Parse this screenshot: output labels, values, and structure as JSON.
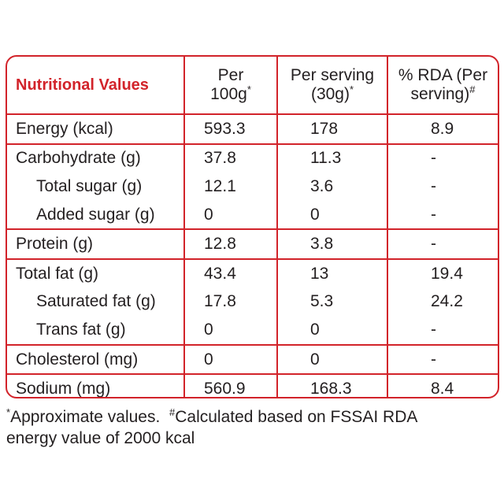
{
  "table": {
    "headers": {
      "title": "Nutritional Values",
      "per100_line1": "Per",
      "per100_line2": "100g",
      "per100_mark": "*",
      "serving_line1": "Per serving",
      "serving_line2": "(30g)",
      "serving_mark": "*",
      "rda_line1": "% RDA (Per",
      "rda_line2": "serving)",
      "rda_mark": "#"
    },
    "rows": [
      {
        "label": "Energy (kcal)",
        "per100": "593.3",
        "per_serving": "178",
        "rda": "8.9"
      },
      {
        "label": "Carbohydrate (g)",
        "per100": "37.8",
        "per_serving": "11.3",
        "rda": "-"
      },
      {
        "label": "Total sugar (g)",
        "per100": "12.1",
        "per_serving": "3.6",
        "rda": "-"
      },
      {
        "label": "Added sugar (g)",
        "per100": "0",
        "per_serving": "0",
        "rda": "-"
      },
      {
        "label": "Protein (g)",
        "per100": "12.8",
        "per_serving": "3.8",
        "rda": "-"
      },
      {
        "label": "Total fat (g)",
        "per100": "43.4",
        "per_serving": "13",
        "rda": "19.4"
      },
      {
        "label": "Saturated fat (g)",
        "per100": "17.8",
        "per_serving": "5.3",
        "rda": "24.2"
      },
      {
        "label": "Trans fat (g)",
        "per100": "0",
        "per_serving": "0",
        "rda": "-"
      },
      {
        "label": "Cholesterol (mg)",
        "per100": "0",
        "per_serving": "0",
        "rda": "-"
      },
      {
        "label": "Sodium (mg)",
        "per100": "560.9",
        "per_serving": "168.3",
        "rda": "8.4"
      }
    ]
  },
  "footnote": {
    "mark1": "*",
    "text1": "Approximate values.",
    "mark2": "#",
    "text2": "Calculated based on FSSAI RDA",
    "text3": "energy value of 2000 kcal"
  },
  "colors": {
    "border": "#d2232a",
    "heading": "#d2232a",
    "text": "#231f20"
  }
}
